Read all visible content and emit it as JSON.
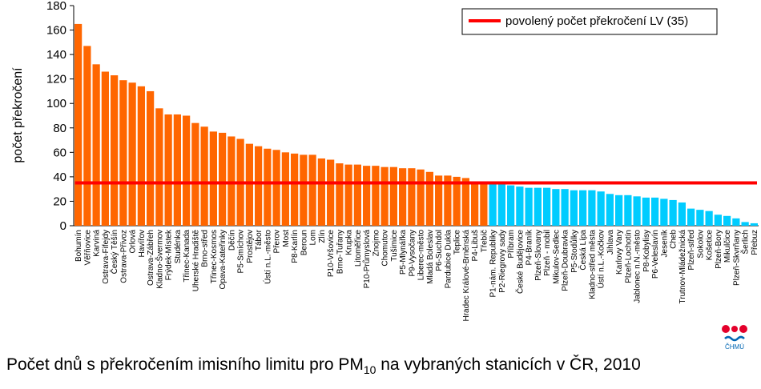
{
  "chart_data": {
    "type": "bar",
    "title": "",
    "xlabel": "",
    "ylabel": "počet překročení",
    "ylim": [
      0,
      180
    ],
    "yticks": [
      0,
      20,
      40,
      60,
      80,
      100,
      120,
      140,
      160,
      180
    ],
    "grid": false,
    "legend": {
      "placement": "top-right",
      "entries": [
        "povolený počet překročení LV (35)"
      ]
    },
    "limit": {
      "label": "povolený počet překročení LV (35)",
      "value": 35
    },
    "colors": {
      "above_limit": "#FF6600",
      "below_limit": "#00CCFF",
      "limit_line": "#FF0000"
    },
    "categories": [
      "Bohumín",
      "Věřňovice",
      "Karviná",
      "Ostrava-Fifejdy",
      "Český Těšín",
      "Ostrava-Přívoz",
      "Orlová",
      "Havířov",
      "Ostrava-Zábřeh",
      "Kladno-Švermov",
      "Frýdek-Místek",
      "Studénka",
      "Třinec-Kanada",
      "Uherské Hradiště",
      "Brno-střed",
      "Třinec-Kosmos",
      "Opava-Kateřinky",
      "Děčín",
      "P5-Smíchov",
      "Prostějov",
      "Tábor",
      "Ústí n.L.-město",
      "Přerov",
      "Most",
      "P8-Karlín",
      "Beroun",
      "Lom",
      "Zlín",
      "P10-Vršovice",
      "Brno-Tuřany",
      "Krupka",
      "Litoměřice",
      "P10-Průmyslová",
      "Znojmo",
      "Chomutov",
      "Tušimice",
      "P5-Mlynářka",
      "P9-Vysočany",
      "Liberec-město",
      "Mladá Boleslav",
      "P6-Suchdol",
      "Pardubice Dukla",
      "Teplice",
      "Hradec Králové-Brněnská",
      "P4-Libuš",
      "Třebíč",
      "P1-nám. Republiky",
      "P2-Riegrovy sady",
      "Příbram",
      "České Budějovice",
      "P4-Braník",
      "Plzeň-Slovany",
      "Plzeň - mobil",
      "Mikulov-Sedlec",
      "Plzeň-Doubravka",
      "P5-Stodůlky",
      "Česká Lípa",
      "Kladno-střed města",
      "Ústí n.L.-Kočkov",
      "Jihlava",
      "Karlovy Vary",
      "Plzeň-Lochotín",
      "Jablonec n.N.-město",
      "P8-Kobylisy",
      "P6-Veleslavín",
      "Jeseník",
      "Cheb",
      "Trutnov-Mládežnická",
      "Plzeň-střed",
      "Sokolov",
      "Košetice",
      "Plzeň-Bory",
      "Mikulčice",
      "Plzeň-Skvrňany",
      "Šerlich",
      "Přebuz"
    ],
    "values": [
      165,
      147,
      132,
      126,
      123,
      119,
      117,
      114,
      110,
      96,
      91,
      91,
      90,
      84,
      81,
      77,
      76,
      73,
      71,
      67,
      65,
      63,
      62,
      60,
      59,
      58,
      58,
      55,
      54,
      51,
      50,
      50,
      49,
      49,
      48,
      48,
      47,
      47,
      46,
      44,
      41,
      41,
      40,
      39,
      36,
      35,
      34,
      34,
      33,
      32,
      31,
      31,
      31,
      30,
      30,
      29,
      29,
      29,
      28,
      26,
      25,
      25,
      24,
      23,
      23,
      22,
      21,
      19,
      14,
      13,
      12,
      9,
      8,
      6,
      3,
      2
    ]
  },
  "caption": {
    "main": "Počet dnů s překročením imisního limitu pro PM",
    "sub": "10",
    "rest": " na vybraných stanicích v ČR, 2010"
  },
  "logo": {
    "text": "ČHMÚ"
  }
}
